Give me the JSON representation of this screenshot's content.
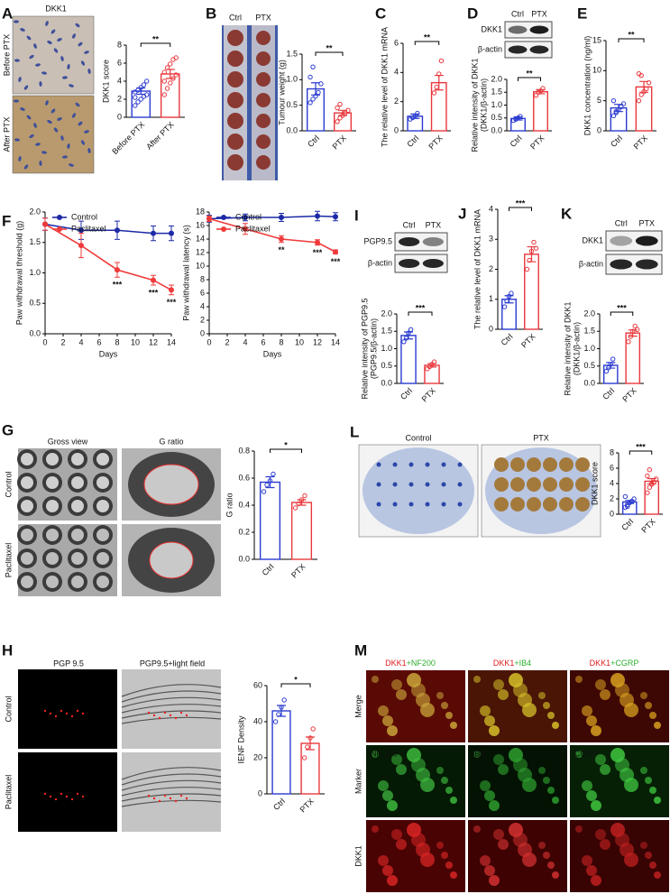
{
  "panel_letters": [
    "A",
    "B",
    "C",
    "D",
    "E",
    "F",
    "G",
    "H",
    "I",
    "J",
    "K",
    "L",
    "M"
  ],
  "figure_text": {
    "A": {
      "stain": "DKK1",
      "rows": [
        "Before PTX",
        "After PTX"
      ]
    },
    "B": {
      "cols": [
        "Ctrl",
        "PTX"
      ]
    },
    "D": {
      "cols": [
        "Ctrl",
        "PTX"
      ],
      "rows": [
        "DKK1",
        "β-actin"
      ]
    },
    "G": {
      "cols": [
        "Gross view",
        "G ratio"
      ],
      "rows": [
        "Control",
        "Paclitaxel"
      ]
    },
    "H": {
      "cols": [
        "PGP 9.5",
        "PGP9.5+light field"
      ],
      "rows": [
        "Control",
        "Paclitaxel"
      ]
    },
    "I": {
      "cols": [
        "Ctrl",
        "PTX"
      ],
      "rows": [
        "PGP9.5",
        "β-actin"
      ]
    },
    "K": {
      "cols": [
        "Ctrl",
        "PTX"
      ],
      "rows": [
        "DKK1",
        "β-actin"
      ]
    },
    "L": {
      "cols": [
        "Control",
        "PTX"
      ]
    },
    "M": {
      "cols": [
        [
          "DKK1",
          "+NF200"
        ],
        [
          "DKK1",
          "+IB4"
        ],
        [
          "DKK1",
          "+CGRP"
        ]
      ],
      "rows": [
        "Merge",
        "Marker",
        "DKK1"
      ],
      "markers": [
        "NF-200",
        "IB4",
        "CGRP"
      ]
    }
  },
  "chart_data": [
    {
      "type": "bar",
      "ylabel": "DKK1 score",
      "categories": [
        "Before PTX",
        "After PTX"
      ],
      "values": [
        2.9,
        4.8
      ],
      "errors": [
        0.35,
        0.5
      ],
      "colors": [
        "#2b3bd0",
        "#e8383d"
      ],
      "points": [
        [
          1.3,
          1.7,
          2.0,
          2.3,
          2.5,
          2.8,
          3.0,
          3.3,
          3.6,
          4.0,
          2.2
        ],
        [
          2.5,
          3.2,
          3.8,
          4.3,
          4.7,
          5.0,
          5.5,
          5.9,
          6.4,
          6.6,
          4.0
        ]
      ],
      "ylim": [
        0,
        8
      ],
      "yticks": [
        0,
        2,
        4,
        6,
        8
      ],
      "significance": "**"
    },
    {
      "type": "bar",
      "ylabel": "Tumour weight (g)",
      "categories": [
        "Ctrl",
        "PTX"
      ],
      "values": [
        0.82,
        0.35
      ],
      "errors": [
        0.12,
        0.05
      ],
      "colors": [
        "#2b3bd0",
        "#e8383d"
      ],
      "points": [
        [
          0.55,
          0.62,
          0.68,
          0.75,
          0.92,
          1.05,
          1.25
        ],
        [
          0.18,
          0.25,
          0.3,
          0.35,
          0.4,
          0.45,
          0.52
        ]
      ],
      "ylim": [
        0,
        1.5
      ],
      "yticks": [
        {
          "value": 0,
          "label": "0.0"
        },
        0.5,
        {
          "value": 1,
          "label": "1.0"
        },
        1.5
      ],
      "significance": "**"
    },
    {
      "type": "bar",
      "ylabel": "The relative level of DKK1 mRNA",
      "categories": [
        "Ctrl",
        "PTX"
      ],
      "values": [
        1.0,
        3.3
      ],
      "errors": [
        0.15,
        0.5
      ],
      "colors": [
        "#2b3bd0",
        "#e8383d"
      ],
      "points": [
        [
          0.8,
          0.9,
          1.0,
          1.2
        ],
        [
          2.6,
          3.0,
          3.9,
          4.8
        ]
      ],
      "ylim": [
        0,
        6
      ],
      "yticks": [
        0,
        2,
        4,
        6
      ],
      "significance": "**"
    },
    {
      "type": "bar",
      "ylabel": [
        "Relative intensity of DKK1",
        "(DKK1/β-actin)"
      ],
      "categories": [
        "Ctrl",
        "PTX"
      ],
      "values": [
        0.48,
        1.52
      ],
      "errors": [
        0.06,
        0.08
      ],
      "colors": [
        "#2b3bd0",
        "#e8383d"
      ],
      "points": [
        [
          0.4,
          0.45,
          0.5,
          0.56
        ],
        [
          1.38,
          1.5,
          1.55,
          1.65
        ]
      ],
      "ylim": [
        0,
        2
      ],
      "yticks": [
        {
          "value": 0,
          "label": "0.0"
        },
        0.5,
        {
          "value": 1,
          "label": "1.0"
        },
        1.5,
        {
          "value": 2,
          "label": "2.0"
        }
      ],
      "significance": "**"
    },
    {
      "type": "bar",
      "ylabel": "DKK1 concentration (ng/ml)",
      "categories": [
        "Ctrl",
        "PTX"
      ],
      "values": [
        3.8,
        7.3
      ],
      "errors": [
        0.6,
        0.9
      ],
      "colors": [
        "#2b3bd0",
        "#e8383d"
      ],
      "points": [
        [
          2.5,
          3.0,
          3.5,
          4.0,
          4.5,
          5.0,
          3.2
        ],
        [
          5.0,
          6.0,
          6.5,
          7.0,
          8.0,
          9.5,
          9.2
        ]
      ],
      "ylim": [
        0,
        15
      ],
      "yticks": [
        0,
        5,
        10,
        15
      ],
      "significance": "**"
    },
    {
      "type": "line",
      "ylabel": "Paw withdrawal threshold (g)",
      "xlabel": "Days",
      "x": [
        0,
        4,
        8,
        12,
        14
      ],
      "xlim": [
        0,
        14
      ],
      "xticks": [
        0,
        2,
        4,
        6,
        8,
        10,
        12,
        14
      ],
      "ylim": [
        0,
        2
      ],
      "yticks": [
        {
          "value": 0,
          "label": "0.0"
        },
        0.5,
        {
          "value": 1,
          "label": "1.0"
        },
        1.5,
        {
          "value": 2,
          "label": "2.0"
        }
      ],
      "legend": "upper left",
      "series": [
        {
          "name": "Control",
          "color": "#1c2aa6",
          "values": [
            1.8,
            1.7,
            1.7,
            1.65,
            1.65
          ],
          "errors": [
            0.1,
            0.15,
            0.15,
            0.12,
            0.12
          ]
        },
        {
          "name": "Paclitaxel",
          "color": "#ee3a3a",
          "values": [
            1.8,
            1.45,
            1.05,
            0.88,
            0.72
          ],
          "errors": [
            0.1,
            0.2,
            0.12,
            0.08,
            0.08
          ]
        }
      ],
      "annotations": [
        {
          "x": 8,
          "text": "***"
        },
        {
          "x": 12,
          "text": "***"
        },
        {
          "x": 14,
          "text": "***"
        }
      ]
    },
    {
      "type": "line",
      "ylabel": "Paw withdrawal latency (s)",
      "xlabel": "Days",
      "x": [
        0,
        4,
        8,
        12,
        14
      ],
      "xlim": [
        0,
        14
      ],
      "xticks": [
        0,
        2,
        4,
        6,
        8,
        10,
        12,
        14
      ],
      "ylim": [
        0,
        18
      ],
      "yticks": [
        0,
        2,
        4,
        6,
        8,
        10,
        12,
        14,
        16,
        18
      ],
      "legend": "upper left",
      "series": [
        {
          "name": "Control",
          "color": "#1c2aa6",
          "values": [
            17.0,
            17.2,
            17.2,
            17.4,
            17.3
          ],
          "errors": [
            0.5,
            0.5,
            0.6,
            0.7,
            0.6
          ]
        },
        {
          "name": "Paclitaxel",
          "color": "#ee3a3a",
          "values": [
            17.0,
            15.5,
            14.0,
            13.5,
            12.1
          ],
          "errors": [
            0.4,
            0.8,
            0.5,
            0.4,
            0.3
          ]
        }
      ],
      "annotations": [
        {
          "x": 8,
          "text": "**"
        },
        {
          "x": 12,
          "text": "***"
        },
        {
          "x": 14,
          "text": "***"
        }
      ]
    },
    {
      "type": "bar",
      "ylabel": [
        "Relative intensity of PGP9.5",
        "(PGP9.5/β-actin)"
      ],
      "categories": [
        "Ctrl",
        "PTX"
      ],
      "values": [
        1.38,
        0.52
      ],
      "errors": [
        0.1,
        0.05
      ],
      "colors": [
        "#2b3bd0",
        "#e8383d"
      ],
      "points": [
        [
          1.2,
          1.3,
          1.45,
          1.55
        ],
        [
          0.42,
          0.48,
          0.55,
          0.62
        ]
      ],
      "ylim": [
        0,
        2
      ],
      "yticks": [
        {
          "value": 0,
          "label": "0.0"
        },
        0.5,
        {
          "value": 1,
          "label": "1.0"
        },
        1.5,
        {
          "value": 2,
          "label": "2.0"
        }
      ],
      "significance": "***"
    },
    {
      "type": "bar",
      "ylabel": "The relative level of DKK1 mRNA",
      "categories": [
        "Ctrl",
        "PTX"
      ],
      "values": [
        1.0,
        2.5
      ],
      "errors": [
        0.12,
        0.25
      ],
      "colors": [
        "#2b3bd0",
        "#e8383d"
      ],
      "points": [
        [
          0.75,
          0.95,
          1.1,
          1.2
        ],
        [
          2.0,
          2.3,
          2.6,
          2.9,
          2.7
        ]
      ],
      "ylim": [
        0,
        4
      ],
      "yticks": [
        0,
        1,
        2,
        3,
        4
      ],
      "significance": "***"
    },
    {
      "type": "bar",
      "ylabel": [
        "Relative intensity of DKK1",
        "(DKK1/β-actin)"
      ],
      "categories": [
        "Ctrl",
        "PTX"
      ],
      "values": [
        0.52,
        1.45
      ],
      "errors": [
        0.08,
        0.09
      ],
      "colors": [
        "#2b3bd0",
        "#e8383d"
      ],
      "points": [
        [
          0.35,
          0.45,
          0.55,
          0.7
        ],
        [
          1.2,
          1.35,
          1.5,
          1.65,
          1.55
        ]
      ],
      "ylim": [
        0,
        2
      ],
      "yticks": [
        {
          "value": 0,
          "label": "0.0"
        },
        0.5,
        {
          "value": 1,
          "label": "1.0"
        },
        1.5,
        {
          "value": 2,
          "label": "2.0"
        }
      ],
      "significance": "***"
    },
    {
      "type": "bar",
      "ylabel": "G ratio",
      "categories": [
        "Ctrl",
        "PTX"
      ],
      "values": [
        0.57,
        0.42
      ],
      "errors": [
        0.04,
        0.02
      ],
      "colors": [
        "#2b3bd0",
        "#e8383d"
      ],
      "points": [
        [
          0.5,
          0.55,
          0.58,
          0.63
        ],
        [
          0.38,
          0.41,
          0.44,
          0.47
        ]
      ],
      "ylim": [
        0,
        0.8
      ],
      "yticks": [
        {
          "value": 0,
          "label": "0.0"
        },
        0.2,
        0.4,
        0.6,
        0.8
      ],
      "significance": "*"
    },
    {
      "type": "bar",
      "ylabel": "DKK1 score",
      "categories": [
        "Ctrl",
        "PTX"
      ],
      "values": [
        1.6,
        4.3
      ],
      "errors": [
        0.2,
        0.35
      ],
      "colors": [
        "#2b3bd0",
        "#e8383d"
      ],
      "points": [
        [
          0.9,
          1.2,
          1.5,
          1.7,
          2.0,
          2.3,
          1.0
        ],
        [
          2.8,
          3.5,
          3.9,
          4.2,
          4.6,
          5.0,
          5.8,
          4.0
        ]
      ],
      "ylim": [
        0,
        8
      ],
      "yticks": [
        0,
        2,
        4,
        6,
        8
      ],
      "significance": "***"
    },
    {
      "type": "bar",
      "ylabel": "IENF Density",
      "categories": [
        "Ctrl",
        "PTX"
      ],
      "values": [
        46,
        28
      ],
      "errors": [
        3,
        3.5
      ],
      "colors": [
        "#2b3bd0",
        "#e8383d"
      ],
      "points": [
        [
          40,
          44,
          48,
          52
        ],
        [
          20,
          26,
          31,
          36
        ]
      ],
      "ylim": [
        0,
        60
      ],
      "yticks": [
        0,
        20,
        40,
        60
      ],
      "significance": "*"
    }
  ]
}
